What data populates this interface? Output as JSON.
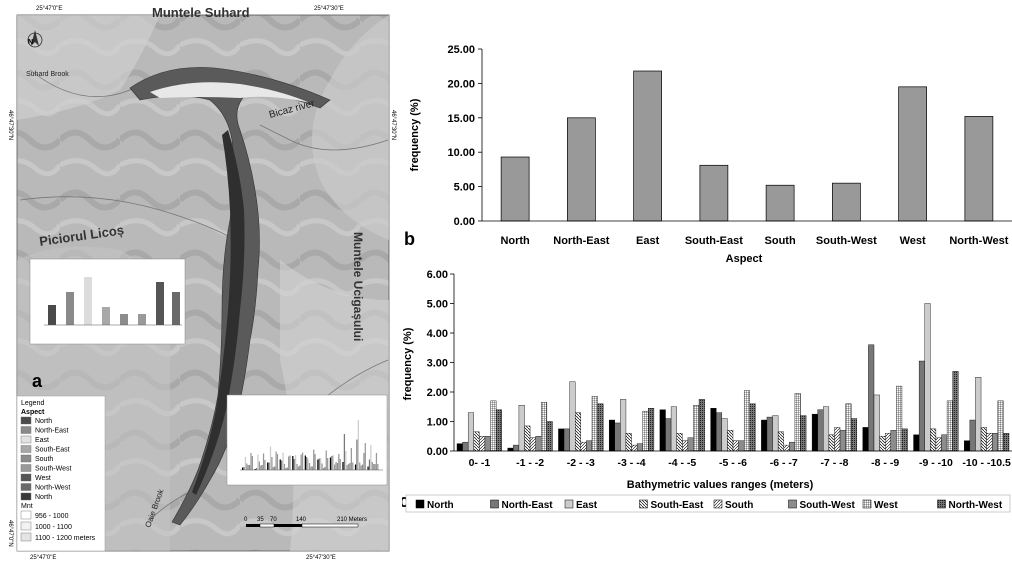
{
  "map": {
    "coords_top": [
      "25°47'0\"E",
      "25°47'30\"E"
    ],
    "coords_bottom": [
      "25°47'0\"E",
      "25°47'30\"E"
    ],
    "coords_left": [
      "46°47'30\"N",
      "46°47'0\"N"
    ],
    "coords_right": [
      "46°47'30\"N"
    ],
    "place_names": {
      "muntele_suhard": "Muntele Suhard",
      "suhard_brook": "Suhard Brook",
      "bicaz_river": "Bicaz river",
      "piciorul_licos": "Piciorul Licoș",
      "muntele_ucigasului": "Muntele Ucigașului",
      "oaie_brook": "Oaie Brook"
    },
    "north_label": "N",
    "panel_label": "a",
    "legend": {
      "title": "Legend",
      "aspect_title": "Aspect",
      "aspect_items": [
        {
          "label": "North",
          "color": "#4a4a4a"
        },
        {
          "label": "North-East",
          "color": "#8a8a8a"
        },
        {
          "label": "East",
          "color": "#e2e2e2"
        },
        {
          "label": "South-East",
          "color": "#a8a8a8"
        },
        {
          "label": "South",
          "color": "#8c8c8c"
        },
        {
          "label": "South-West",
          "color": "#9a9a9a"
        },
        {
          "label": "West",
          "color": "#555555"
        },
        {
          "label": "North-West",
          "color": "#6a6a6a"
        },
        {
          "label": "North",
          "color": "#3a3a3a"
        }
      ],
      "mnt_title": "Mnt",
      "mnt_items": [
        {
          "label": "956 - 1000",
          "color": "#ffffff"
        },
        {
          "label": "1000 - 1100",
          "color": "#f2f2f2"
        },
        {
          "label": "1100 - 1200 meters",
          "color": "#e4e4e4"
        }
      ]
    },
    "scale_labels": [
      "0",
      "35",
      "70",
      "140",
      "210 Meters"
    ]
  },
  "chart_data": [
    {
      "type": "bar",
      "panel_label": "b",
      "title": "",
      "xlabel": "Aspect",
      "ylabel": "frequency (%)",
      "ylim": [
        0,
        25
      ],
      "yticks": [
        "0.00",
        "5.00",
        "10.00",
        "15.00",
        "20.00",
        "25.00"
      ],
      "categories": [
        "North",
        "North-East",
        "East",
        "South-East",
        "South",
        "South-West",
        "West",
        "North-West"
      ],
      "values": [
        9.3,
        15.0,
        21.8,
        8.1,
        5.2,
        5.5,
        19.5,
        15.2
      ],
      "bar_color": "#999999",
      "grid": false
    },
    {
      "type": "bar",
      "panel_label": "c",
      "title": "",
      "xlabel": "Bathymetric values ranges (meters)",
      "ylabel": "frequency (%)",
      "ylim": [
        0,
        6
      ],
      "yticks": [
        "0.00",
        "1.00",
        "2.00",
        "3.00",
        "4.00",
        "5.00",
        "6.00"
      ],
      "categories": [
        "0- -1",
        "-1 - -2",
        "-2 - -3",
        "-3 - -4",
        "-4 - -5",
        "-5 - -6",
        "-6 - -7",
        "-7 - -8",
        "-8 - -9",
        "-9 - -10",
        "-10 - -10.5"
      ],
      "legend_position": "bottom",
      "series": [
        {
          "name": "North",
          "color": "#000000",
          "pattern": "solid",
          "values": [
            0.25,
            0.1,
            0.75,
            1.05,
            1.4,
            1.45,
            1.05,
            1.25,
            0.8,
            0.55,
            0.35
          ]
        },
        {
          "name": "North-East",
          "color": "#777777",
          "pattern": "solid",
          "values": [
            0.3,
            0.2,
            0.75,
            0.95,
            1.1,
            1.3,
            1.15,
            1.4,
            3.6,
            3.05,
            1.05
          ]
        },
        {
          "name": "East",
          "color": "#cccccc",
          "pattern": "solid",
          "values": [
            1.3,
            1.55,
            2.35,
            1.75,
            1.5,
            1.1,
            1.2,
            1.5,
            1.9,
            5.0,
            2.5
          ]
        },
        {
          "name": "South-East",
          "color": "#ffffff",
          "pattern": "diag-back",
          "values": [
            0.65,
            0.85,
            1.3,
            0.6,
            0.6,
            0.7,
            0.65,
            0.55,
            0.5,
            0.75,
            0.8
          ]
        },
        {
          "name": "South",
          "color": "#ffffff",
          "pattern": "diag-fwd",
          "values": [
            0.5,
            0.45,
            0.3,
            0.2,
            0.35,
            0.35,
            0.2,
            0.8,
            0.6,
            0.45,
            0.6
          ]
        },
        {
          "name": "South-West",
          "color": "#8c8c8c",
          "pattern": "solid",
          "values": [
            0.5,
            0.5,
            0.35,
            0.25,
            0.45,
            0.35,
            0.3,
            0.7,
            0.7,
            0.55,
            0.6
          ]
        },
        {
          "name": "West",
          "color": "#ffffff",
          "pattern": "grid",
          "values": [
            1.7,
            1.65,
            1.85,
            1.35,
            1.55,
            2.05,
            1.95,
            1.6,
            2.2,
            1.7,
            1.7
          ]
        },
        {
          "name": "North-West",
          "color": "#ffffff",
          "pattern": "dots",
          "values": [
            1.4,
            1.0,
            1.6,
            1.45,
            1.75,
            1.6,
            1.2,
            1.1,
            0.75,
            2.7,
            0.6
          ]
        }
      ],
      "grid": false
    }
  ]
}
